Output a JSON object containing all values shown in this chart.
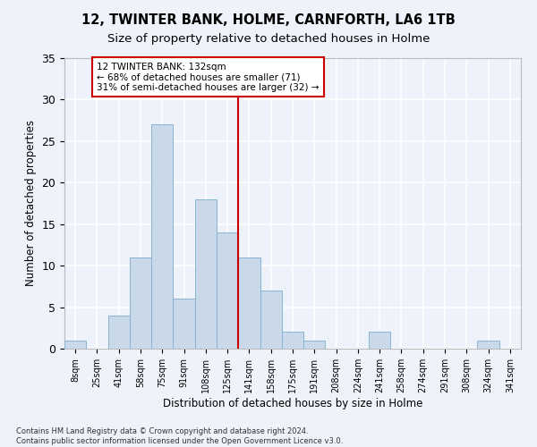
{
  "title1": "12, TWINTER BANK, HOLME, CARNFORTH, LA6 1TB",
  "title2": "Size of property relative to detached houses in Holme",
  "xlabel": "Distribution of detached houses by size in Holme",
  "ylabel": "Number of detached properties",
  "footnote": "Contains HM Land Registry data © Crown copyright and database right 2024.\nContains public sector information licensed under the Open Government Licence v3.0.",
  "bin_labels": [
    "8sqm",
    "25sqm",
    "41sqm",
    "58sqm",
    "75sqm",
    "91sqm",
    "108sqm",
    "125sqm",
    "141sqm",
    "158sqm",
    "175sqm",
    "191sqm",
    "208sqm",
    "224sqm",
    "241sqm",
    "258sqm",
    "274sqm",
    "291sqm",
    "308sqm",
    "324sqm",
    "341sqm"
  ],
  "bar_values": [
    1,
    0,
    4,
    11,
    27,
    6,
    18,
    14,
    11,
    7,
    2,
    1,
    0,
    0,
    2,
    0,
    0,
    0,
    0,
    1,
    0
  ],
  "bar_color": "#c9d9ea",
  "bar_edge_color": "#8ab4d4",
  "bar_width": 1.0,
  "vline_x": 7.5,
  "vline_color": "#cc0000",
  "ylim": [
    0,
    35
  ],
  "yticks": [
    0,
    5,
    10,
    15,
    20,
    25,
    30,
    35
  ],
  "annotation_text": "12 TWINTER BANK: 132sqm\n← 68% of detached houses are smaller (71)\n31% of semi-detached houses are larger (32) →",
  "annotation_box_color": "#cc0000",
  "background_color": "#eef2fa",
  "grid_color": "#ffffff",
  "title_fontsize": 10.5,
  "subtitle_fontsize": 9.5,
  "axis_label_fontsize": 8.5,
  "tick_label_fontsize": 7,
  "annotation_fontsize": 7.5,
  "footnote_fontsize": 6
}
